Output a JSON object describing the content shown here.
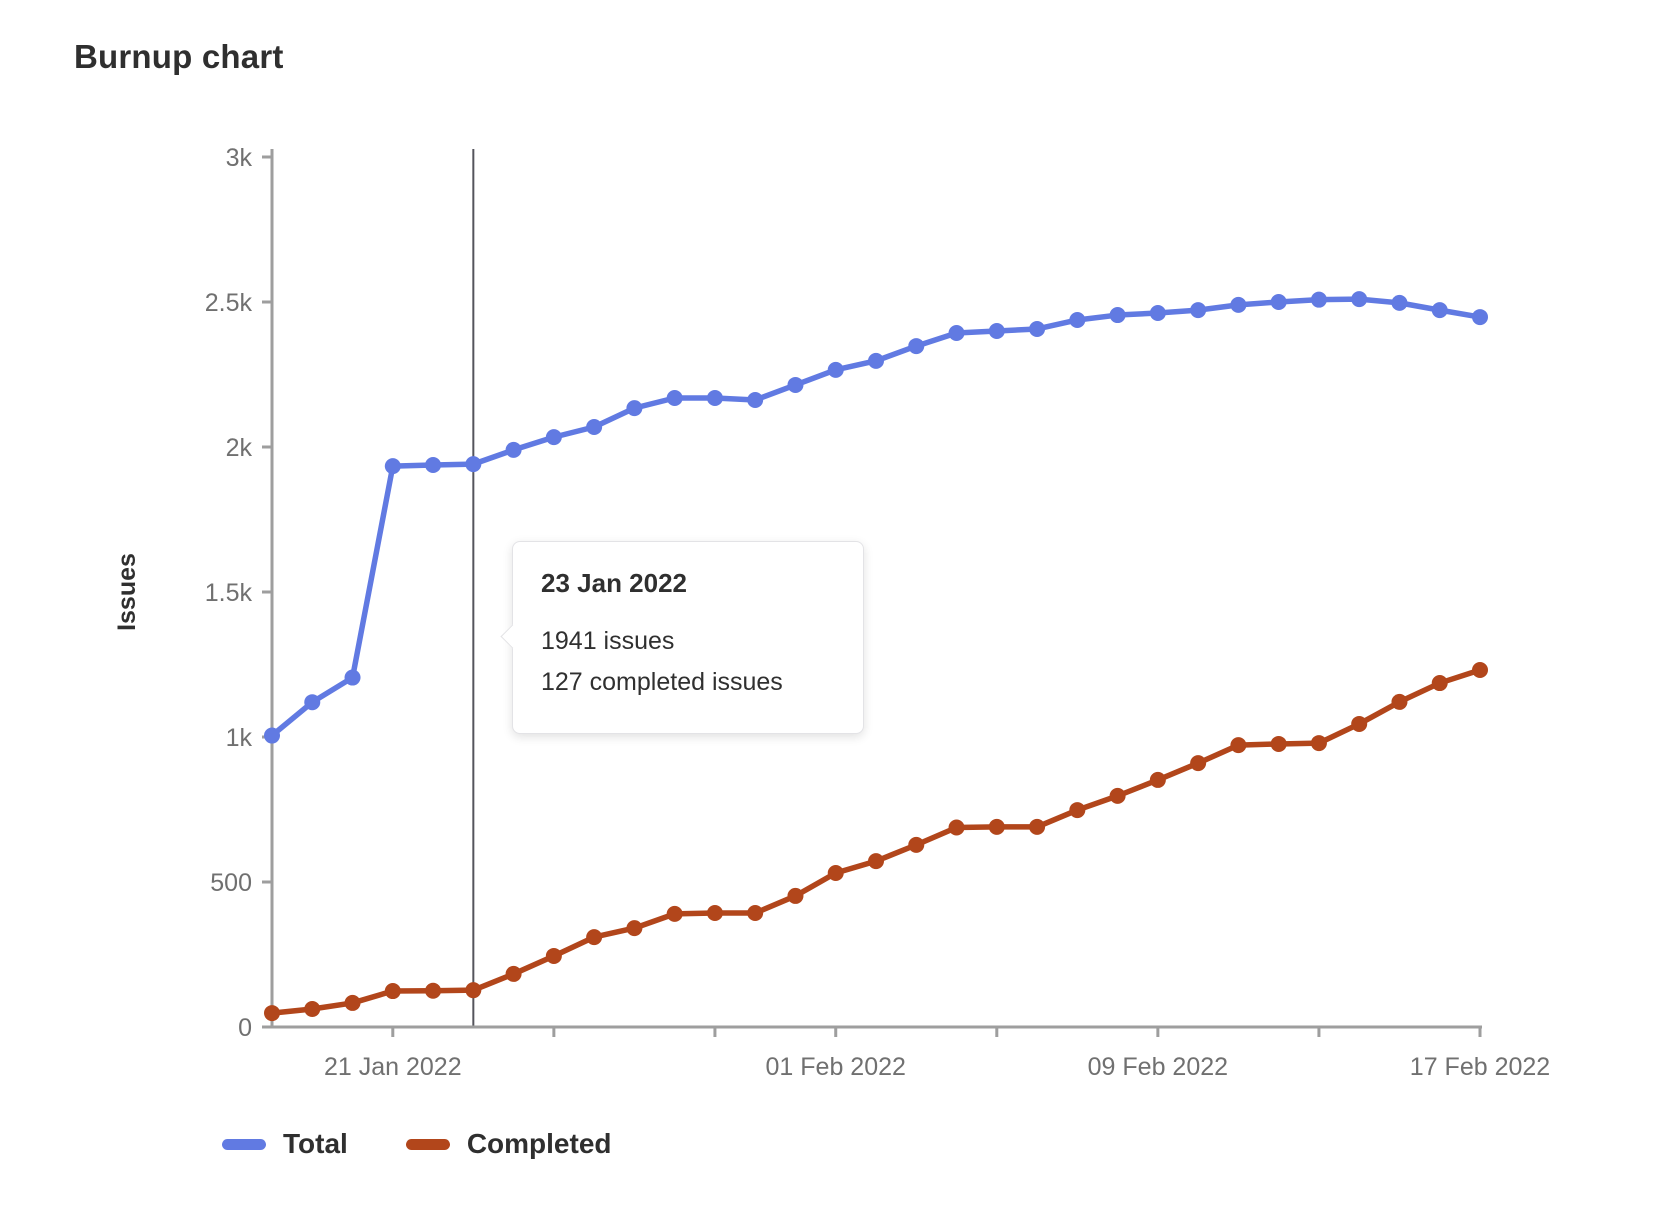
{
  "page": {
    "title": "Burnup chart"
  },
  "chart_data": {
    "type": "line",
    "title": "Burnup chart",
    "xlabel": "",
    "ylabel": "Issues",
    "ylim": [
      0,
      3000
    ],
    "grid": false,
    "legend_position": "bottom-left",
    "x": [
      "18 Jan 2022",
      "19 Jan 2022",
      "20 Jan 2022",
      "21 Jan 2022",
      "22 Jan 2022",
      "23 Jan 2022",
      "24 Jan 2022",
      "25 Jan 2022",
      "26 Jan 2022",
      "27 Jan 2022",
      "28 Jan 2022",
      "29 Jan 2022",
      "30 Jan 2022",
      "31 Jan 2022",
      "01 Feb 2022",
      "02 Feb 2022",
      "03 Feb 2022",
      "04 Feb 2022",
      "05 Feb 2022",
      "06 Feb 2022",
      "07 Feb 2022",
      "08 Feb 2022",
      "09 Feb 2022",
      "10 Feb 2022",
      "11 Feb 2022",
      "12 Feb 2022",
      "13 Feb 2022",
      "14 Feb 2022",
      "15 Feb 2022",
      "16 Feb 2022",
      "17 Feb 2022"
    ],
    "series": [
      {
        "name": "Total",
        "color": "#617ae2",
        "values": [
          1005,
          1120,
          1205,
          1934,
          1938,
          1941,
          1990,
          2034,
          2069,
          2134,
          2169,
          2169,
          2162,
          2214,
          2266,
          2297,
          2348,
          2393,
          2400,
          2407,
          2438,
          2455,
          2462,
          2472,
          2490,
          2500,
          2508,
          2510,
          2497,
          2472,
          2448
        ]
      },
      {
        "name": "Completed",
        "color": "#b2461b",
        "values": [
          48,
          62,
          83,
          124,
          125,
          127,
          183,
          245,
          310,
          341,
          390,
          393,
          393,
          452,
          531,
          572,
          628,
          688,
          690,
          690,
          748,
          797,
          852,
          910,
          972,
          976,
          979,
          1045,
          1121,
          1186,
          1231
        ]
      }
    ],
    "y_axis": {
      "tick_values": [
        0,
        500,
        1000,
        1500,
        2000,
        2500,
        3000
      ],
      "tick_labels": [
        "0",
        "500",
        "1k",
        "1.5k",
        "2k",
        "2.5k",
        "3k"
      ]
    },
    "x_axis": {
      "tick_day_indices": [
        3,
        7,
        11,
        14,
        18,
        22,
        26,
        30
      ],
      "labels": [
        {
          "day": 3,
          "label": "21 Jan 2022"
        },
        {
          "day": 14,
          "label": "01 Feb 2022"
        },
        {
          "day": 22,
          "label": "09 Feb 2022"
        },
        {
          "day": 30,
          "label": "17 Feb 2022"
        }
      ]
    },
    "hover": {
      "day_index": 5
    }
  },
  "tooltip": {
    "date": "23 Jan 2022",
    "total_line": "1941 issues",
    "completed_line": "127 completed issues"
  },
  "legend": {
    "items": [
      {
        "label": "Total",
        "color": "#617ae2"
      },
      {
        "label": "Completed",
        "color": "#b2461b"
      }
    ]
  },
  "style_colors": {
    "axis_line": "#9e9e9e",
    "tick_label": "#707070",
    "hover_line": "#55555c",
    "text_dark": "#2f2f2f"
  }
}
